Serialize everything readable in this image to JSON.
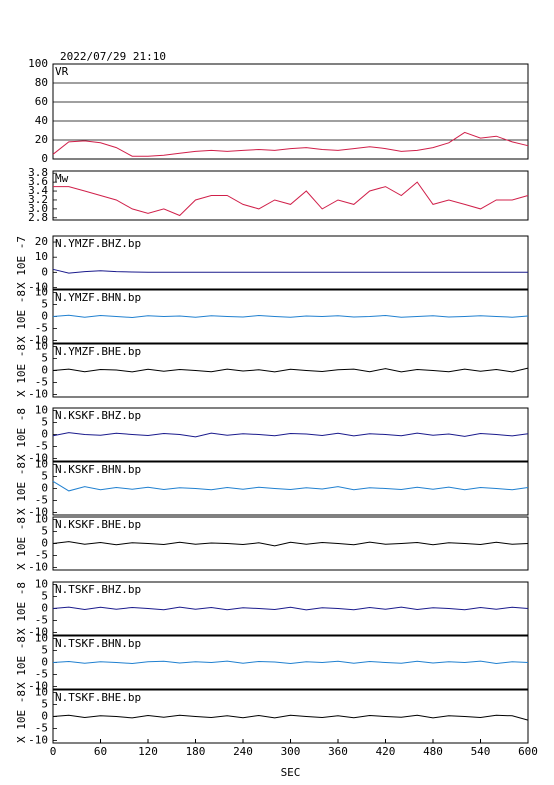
{
  "chart_data": [
    {
      "type": "line",
      "title": "2022/07/29 21:10",
      "label": "VR",
      "grid": true,
      "xlim": [
        0,
        600
      ],
      "ylim": [
        0,
        100
      ],
      "yticks": [
        0,
        20,
        40,
        60,
        80,
        100
      ],
      "series": [
        {
          "color": "#d0204a",
          "x": [
            0,
            20,
            40,
            60,
            80,
            100,
            120,
            140,
            160,
            180,
            200,
            220,
            240,
            260,
            280,
            300,
            320,
            340,
            360,
            380,
            400,
            420,
            440,
            460,
            480,
            500,
            520,
            540,
            560,
            580,
            600
          ],
          "values": [
            5,
            18,
            19,
            17,
            12,
            3,
            3,
            4,
            6,
            8,
            9,
            8,
            9,
            10,
            9,
            11,
            12,
            10,
            9,
            11,
            13,
            11,
            8,
            9,
            12,
            17,
            28,
            22,
            24,
            18,
            14
          ]
        }
      ]
    },
    {
      "type": "line",
      "label": "Mw",
      "grid": false,
      "xlim": [
        0,
        600
      ],
      "ylim": [
        2.75,
        3.85
      ],
      "yticks": [
        2.8,
        {
          "value": 3,
          "label": "3.0"
        },
        3.2,
        3.4,
        3.6,
        3.8
      ],
      "series": [
        {
          "color": "#d0204a",
          "x": [
            0,
            20,
            40,
            60,
            80,
            100,
            120,
            140,
            160,
            180,
            200,
            220,
            240,
            260,
            280,
            300,
            320,
            340,
            360,
            380,
            400,
            420,
            440,
            460,
            480,
            500,
            520,
            540,
            560,
            580,
            600
          ],
          "values": [
            3.5,
            3.5,
            3.4,
            3.3,
            3.2,
            3.0,
            2.9,
            3.0,
            2.85,
            3.2,
            3.3,
            3.3,
            3.1,
            3.0,
            3.2,
            3.1,
            3.4,
            3.0,
            3.2,
            3.1,
            3.4,
            3.5,
            3.3,
            3.6,
            3.1,
            3.2,
            3.1,
            3.0,
            3.2,
            3.2,
            3.3
          ]
        }
      ]
    },
    {
      "type": "line",
      "label": "N.YMZF.BHZ.bp",
      "ylabel": "X 10E -7",
      "xlim": [
        0,
        600
      ],
      "ylim": [
        -11,
        24
      ],
      "yticks": [
        -10,
        0,
        10,
        20
      ],
      "series": [
        {
          "color": "#1a1a8c",
          "x": [
            0,
            20,
            40,
            60,
            80,
            100,
            120,
            140,
            160,
            180,
            200,
            220,
            240,
            260,
            280,
            300,
            320,
            340,
            360,
            380,
            400,
            420,
            440,
            460,
            480,
            500,
            520,
            540,
            560,
            580,
            600
          ],
          "values": [
            2,
            -0.5,
            0.5,
            1,
            0.5,
            0.2,
            0,
            0,
            0,
            0,
            0,
            0,
            0,
            0,
            0,
            0,
            0,
            0,
            0,
            0,
            0,
            0,
            0,
            0,
            0,
            0,
            0,
            0,
            0,
            0,
            0
          ]
        }
      ]
    },
    {
      "type": "line",
      "label": "N.YMZF.BHN.bp",
      "ylabel": "X 10E -8",
      "xlim": [
        0,
        600
      ],
      "ylim": [
        -11,
        11
      ],
      "yticks": [
        -10,
        -5,
        0,
        5,
        10
      ],
      "series": [
        {
          "color": "#2080d0",
          "x": [
            0,
            20,
            40,
            60,
            80,
            100,
            120,
            140,
            160,
            180,
            200,
            220,
            240,
            260,
            280,
            300,
            320,
            340,
            360,
            380,
            400,
            420,
            440,
            460,
            480,
            500,
            520,
            540,
            560,
            580,
            600
          ],
          "values": [
            0,
            0.5,
            -0.3,
            0.4,
            0,
            -0.4,
            0.3,
            0,
            0.2,
            -0.3,
            0.3,
            0,
            -0.2,
            0.4,
            0,
            -0.3,
            0.2,
            0,
            0.3,
            -0.2,
            0,
            0.4,
            -0.3,
            0,
            0.3,
            -0.2,
            0,
            0.3,
            0,
            -0.3,
            0.2
          ]
        }
      ]
    },
    {
      "type": "line",
      "label": "N.YMZF.BHE.bp",
      "ylabel": "X 10E -8",
      "xlim": [
        0,
        600
      ],
      "ylim": [
        -11,
        11
      ],
      "yticks": [
        -10,
        -5,
        0,
        5,
        10
      ],
      "series": [
        {
          "color": "#000000",
          "x": [
            0,
            20,
            40,
            60,
            80,
            100,
            120,
            140,
            160,
            180,
            200,
            220,
            240,
            260,
            280,
            300,
            320,
            340,
            360,
            380,
            400,
            420,
            440,
            460,
            480,
            500,
            520,
            540,
            560,
            580,
            600
          ],
          "values": [
            0,
            0.6,
            -0.5,
            0.4,
            0.2,
            -0.6,
            0.5,
            -0.3,
            0.4,
            0,
            -0.5,
            0.6,
            -0.2,
            0.3,
            -0.6,
            0.5,
            0,
            -0.4,
            0.3,
            0.6,
            -0.5,
            0.8,
            -0.6,
            0.4,
            0,
            -0.5,
            0.6,
            -0.3,
            0.4,
            -0.6,
            1
          ]
        }
      ]
    },
    {
      "type": "line",
      "label": "N.KSKF.BHZ.bp",
      "ylabel": "X 10E -8",
      "xlim": [
        0,
        600
      ],
      "ylim": [
        -11,
        11
      ],
      "yticks": [
        -10,
        -5,
        0,
        5,
        10
      ],
      "series": [
        {
          "color": "#1a1a8c",
          "x": [
            0,
            20,
            40,
            60,
            80,
            100,
            120,
            140,
            160,
            180,
            200,
            220,
            240,
            260,
            280,
            300,
            320,
            340,
            360,
            380,
            400,
            420,
            440,
            460,
            480,
            500,
            520,
            540,
            560,
            580,
            600
          ],
          "values": [
            -0.5,
            0.8,
            0,
            -0.3,
            0.5,
            0,
            -0.4,
            0.4,
            0,
            -1,
            0.6,
            -0.3,
            0.3,
            0,
            -0.5,
            0.4,
            0.2,
            -0.4,
            0.5,
            -0.6,
            0.3,
            0,
            -0.5,
            0.6,
            -0.3,
            0.2,
            -0.8,
            0.4,
            0,
            -0.6,
            0.3
          ]
        }
      ]
    },
    {
      "type": "line",
      "label": "N.KSKF.BHN.bp",
      "ylabel": "X 10E -8",
      "xlim": [
        0,
        600
      ],
      "ylim": [
        -11,
        11
      ],
      "yticks": [
        -10,
        -5,
        0,
        5,
        10
      ],
      "series": [
        {
          "color": "#2080d0",
          "x": [
            0,
            20,
            40,
            60,
            80,
            100,
            120,
            140,
            160,
            180,
            200,
            220,
            240,
            260,
            280,
            300,
            320,
            340,
            360,
            380,
            400,
            420,
            440,
            460,
            480,
            500,
            520,
            540,
            560,
            580,
            600
          ],
          "values": [
            3,
            -1,
            0.8,
            -0.5,
            0.4,
            -0.3,
            0.5,
            -0.4,
            0.3,
            0,
            -0.5,
            0.4,
            -0.3,
            0.5,
            0,
            -0.4,
            0.3,
            -0.2,
            0.8,
            -0.5,
            0.3,
            0,
            -0.4,
            0.5,
            -0.3,
            0.6,
            -0.5,
            0.4,
            0,
            -0.5,
            0.4
          ]
        }
      ]
    },
    {
      "type": "line",
      "label": "N.KSKF.BHE.bp",
      "ylabel": "X 10E -8",
      "xlim": [
        0,
        600
      ],
      "ylim": [
        -11,
        11
      ],
      "yticks": [
        -10,
        -5,
        0,
        5,
        10
      ],
      "series": [
        {
          "color": "#000000",
          "x": [
            0,
            20,
            40,
            60,
            80,
            100,
            120,
            140,
            160,
            180,
            200,
            220,
            240,
            260,
            280,
            300,
            320,
            340,
            360,
            380,
            400,
            420,
            440,
            460,
            480,
            500,
            520,
            540,
            560,
            580,
            600
          ],
          "values": [
            0,
            0.8,
            -0.3,
            0.4,
            -0.5,
            0.3,
            0,
            -0.4,
            0.5,
            -0.3,
            0.2,
            0,
            -0.4,
            0.3,
            -1,
            0.5,
            -0.3,
            0.4,
            0,
            -0.5,
            0.6,
            -0.3,
            0,
            0.4,
            -0.5,
            0.3,
            0,
            -0.4,
            0.5,
            -0.3,
            0
          ]
        }
      ]
    },
    {
      "type": "line",
      "label": "N.TSKF.BHZ.bp",
      "ylabel": "X 10E -8",
      "xlim": [
        0,
        600
      ],
      "ylim": [
        -11,
        11
      ],
      "yticks": [
        -10,
        -5,
        0,
        5,
        10
      ],
      "series": [
        {
          "color": "#1a1a8c",
          "x": [
            0,
            20,
            40,
            60,
            80,
            100,
            120,
            140,
            160,
            180,
            200,
            220,
            240,
            260,
            280,
            300,
            320,
            340,
            360,
            380,
            400,
            420,
            440,
            460,
            480,
            500,
            520,
            540,
            560,
            580,
            600
          ],
          "values": [
            0,
            0.6,
            -0.4,
            0.5,
            -0.3,
            0.4,
            0,
            -0.5,
            0.6,
            -0.3,
            0.4,
            -0.5,
            0.3,
            0,
            -0.4,
            0.5,
            -0.6,
            0.3,
            0,
            -0.5,
            0.4,
            -0.3,
            0.6,
            -0.4,
            0.3,
            0,
            -0.5,
            0.4,
            -0.3,
            0.5,
            0
          ]
        }
      ]
    },
    {
      "type": "line",
      "label": "N.TSKF.BHN.bp",
      "ylabel": "X 10E -8",
      "xlim": [
        0,
        600
      ],
      "ylim": [
        -11,
        11
      ],
      "yticks": [
        -10,
        -5,
        0,
        5,
        10
      ],
      "series": [
        {
          "color": "#2080d0",
          "x": [
            0,
            20,
            40,
            60,
            80,
            100,
            120,
            140,
            160,
            180,
            200,
            220,
            240,
            260,
            280,
            300,
            320,
            340,
            360,
            380,
            400,
            420,
            440,
            460,
            480,
            500,
            520,
            540,
            560,
            580,
            600
          ],
          "values": [
            0,
            0.4,
            -0.3,
            0.3,
            0,
            -0.4,
            0.3,
            0.5,
            -0.2,
            0.3,
            0,
            0.6,
            -0.3,
            0.4,
            0.2,
            -0.4,
            0.3,
            0,
            0.5,
            -0.3,
            0.4,
            0,
            -0.3,
            0.5,
            -0.2,
            0.3,
            0,
            0.6,
            -0.4,
            0.3,
            0
          ]
        }
      ]
    },
    {
      "type": "line",
      "label": "N.TSKF.BHE.bp",
      "ylabel": "X 10E -8",
      "xlabel": "SEC",
      "xlim": [
        0,
        600
      ],
      "ylim": [
        -11,
        11
      ],
      "yticks": [
        -10,
        -5,
        0,
        5,
        10
      ],
      "xticks": [
        0,
        60,
        120,
        180,
        240,
        300,
        360,
        420,
        480,
        540,
        600
      ],
      "series": [
        {
          "color": "#000000",
          "x": [
            0,
            20,
            40,
            60,
            80,
            100,
            120,
            140,
            160,
            180,
            200,
            220,
            240,
            260,
            280,
            300,
            320,
            340,
            360,
            380,
            400,
            420,
            440,
            460,
            480,
            500,
            520,
            540,
            560,
            580,
            600
          ],
          "values": [
            0,
            0.5,
            -0.4,
            0.3,
            0,
            -0.6,
            0.4,
            -0.3,
            0.5,
            0,
            -0.4,
            0.3,
            -0.5,
            0.4,
            -0.6,
            0.5,
            0,
            -0.4,
            0.3,
            -0.5,
            0.4,
            0,
            -0.3,
            0.5,
            -0.6,
            0.3,
            0,
            -0.4,
            0.5,
            0.3,
            -1.5
          ]
        }
      ]
    }
  ]
}
